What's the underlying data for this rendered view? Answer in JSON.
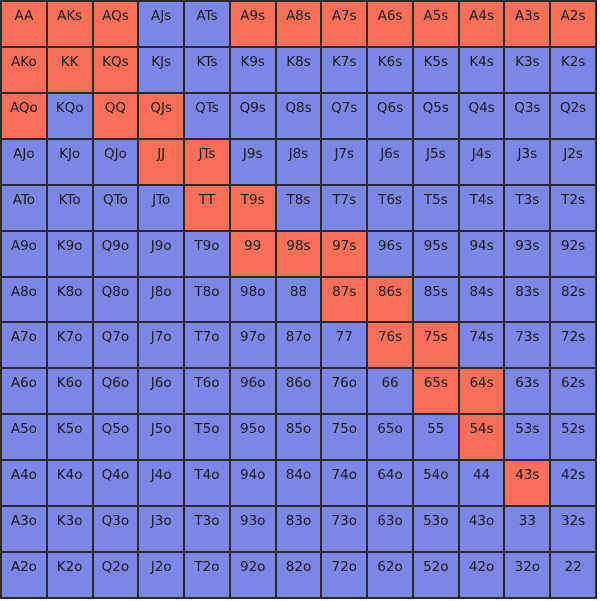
{
  "colors": {
    "raise": "#f86f5a",
    "fold": "#7d86e6",
    "border": "#2a2a2a",
    "text": "#1b1b1b"
  },
  "grid": {
    "rows": [
      [
        "AA",
        "AKs",
        "AQs",
        "AJs",
        "ATs",
        "A9s",
        "A8s",
        "A7s",
        "A6s",
        "A5s",
        "A4s",
        "A3s",
        "A2s"
      ],
      [
        "AKo",
        "KK",
        "KQs",
        "KJs",
        "KTs",
        "K9s",
        "K8s",
        "K7s",
        "K6s",
        "K5s",
        "K4s",
        "K3s",
        "K2s"
      ],
      [
        "AQo",
        "KQo",
        "QQ",
        "QJs",
        "QTs",
        "Q9s",
        "Q8s",
        "Q7s",
        "Q6s",
        "Q5s",
        "Q4s",
        "Q3s",
        "Q2s"
      ],
      [
        "AJo",
        "KJo",
        "QJo",
        "JJ",
        "JTs",
        "J9s",
        "J8s",
        "J7s",
        "J6s",
        "J5s",
        "J4s",
        "J3s",
        "J2s"
      ],
      [
        "ATo",
        "KTo",
        "QTo",
        "JTo",
        "TT",
        "T9s",
        "T8s",
        "T7s",
        "T6s",
        "T5s",
        "T4s",
        "T3s",
        "T2s"
      ],
      [
        "A9o",
        "K9o",
        "Q9o",
        "J9o",
        "T9o",
        "99",
        "98s",
        "97s",
        "96s",
        "95s",
        "94s",
        "93s",
        "92s"
      ],
      [
        "A8o",
        "K8o",
        "Q8o",
        "J8o",
        "T8o",
        "98o",
        "88",
        "87s",
        "86s",
        "85s",
        "84s",
        "83s",
        "82s"
      ],
      [
        "A7o",
        "K7o",
        "Q7o",
        "J7o",
        "T7o",
        "97o",
        "87o",
        "77",
        "76s",
        "75s",
        "74s",
        "73s",
        "72s"
      ],
      [
        "A6o",
        "K6o",
        "Q6o",
        "J6o",
        "T6o",
        "96o",
        "86o",
        "76o",
        "66",
        "65s",
        "64s",
        "63s",
        "62s"
      ],
      [
        "A5o",
        "K5o",
        "Q5o",
        "J5o",
        "T5o",
        "95o",
        "85o",
        "75o",
        "65o",
        "55",
        "54s",
        "53s",
        "52s"
      ],
      [
        "A4o",
        "K4o",
        "Q4o",
        "J4o",
        "T4o",
        "94o",
        "84o",
        "74o",
        "64o",
        "54o",
        "44",
        "43s",
        "42s"
      ],
      [
        "A3o",
        "K3o",
        "Q3o",
        "J3o",
        "T3o",
        "93o",
        "83o",
        "73o",
        "63o",
        "53o",
        "43o",
        "33",
        "32s"
      ],
      [
        "A2o",
        "K2o",
        "Q2o",
        "J2o",
        "T2o",
        "92o",
        "82o",
        "72o",
        "62o",
        "52o",
        "42o",
        "32o",
        "22"
      ]
    ],
    "highlight": [
      [
        1,
        1,
        1,
        0,
        0,
        1,
        1,
        1,
        1,
        1,
        1,
        1,
        1
      ],
      [
        1,
        1,
        1,
        0,
        0,
        0,
        0,
        0,
        0,
        0,
        0,
        0,
        0
      ],
      [
        1,
        0,
        1,
        1,
        0,
        0,
        0,
        0,
        0,
        0,
        0,
        0,
        0
      ],
      [
        0,
        0,
        0,
        1,
        1,
        0,
        0,
        0,
        0,
        0,
        0,
        0,
        0
      ],
      [
        0,
        0,
        0,
        0,
        1,
        1,
        0,
        0,
        0,
        0,
        0,
        0,
        0
      ],
      [
        0,
        0,
        0,
        0,
        0,
        1,
        1,
        1,
        0,
        0,
        0,
        0,
        0
      ],
      [
        0,
        0,
        0,
        0,
        0,
        0,
        0,
        1,
        1,
        0,
        0,
        0,
        0
      ],
      [
        0,
        0,
        0,
        0,
        0,
        0,
        0,
        0,
        1,
        1,
        0,
        0,
        0
      ],
      [
        0,
        0,
        0,
        0,
        0,
        0,
        0,
        0,
        0,
        1,
        1,
        0,
        0
      ],
      [
        0,
        0,
        0,
        0,
        0,
        0,
        0,
        0,
        0,
        0,
        1,
        0,
        0
      ],
      [
        0,
        0,
        0,
        0,
        0,
        0,
        0,
        0,
        0,
        0,
        0,
        1,
        0
      ],
      [
        0,
        0,
        0,
        0,
        0,
        0,
        0,
        0,
        0,
        0,
        0,
        0,
        0
      ],
      [
        0,
        0,
        0,
        0,
        0,
        0,
        0,
        0,
        0,
        0,
        0,
        0,
        0
      ]
    ]
  }
}
